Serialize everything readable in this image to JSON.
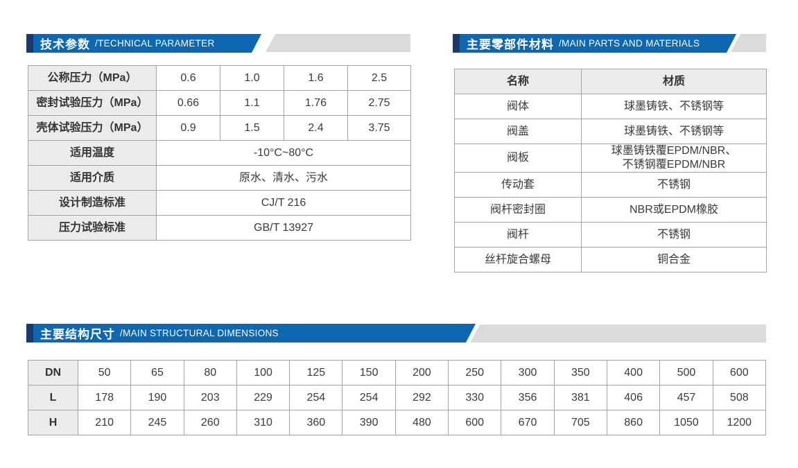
{
  "colors": {
    "banner_blue": "#0d68b1",
    "banner_dark_accent": "#1a3a6b",
    "banner_gray": "#dbdbdb",
    "table_border": "#a3a3a3",
    "label_cell_bg": "#ebebeb",
    "text": "#3a3a3a"
  },
  "sections": {
    "technical": {
      "title_zh": "技术参数",
      "title_en": "/TECHNICAL PARAMETER",
      "rows": [
        {
          "label": "公称压力（MPa）",
          "values": [
            "0.6",
            "1.0",
            "1.6",
            "2.5"
          ]
        },
        {
          "label": "密封试验压力（MPa）",
          "values": [
            "0.66",
            "1.1",
            "1.76",
            "2.75"
          ]
        },
        {
          "label": "壳体试验压力（MPa）",
          "values": [
            "0.9",
            "1.5",
            "2.4",
            "3.75"
          ]
        },
        {
          "label": "适用温度",
          "value": "-10°C~80°C"
        },
        {
          "label": "适用介质",
          "value": "原水、清水、污水"
        },
        {
          "label": "设计制造标准",
          "value": "CJ/T 216"
        },
        {
          "label": "压力试验标准",
          "value": "GB/T 13927"
        }
      ]
    },
    "materials": {
      "title_zh": "主要零部件材料",
      "title_en": "/MAIN PARTS AND MATERIALS",
      "headers": [
        "名称",
        "材质"
      ],
      "rows": [
        {
          "name": "阀体",
          "material": "球墨铸铁、不锈钢等"
        },
        {
          "name": "阀盖",
          "material": "球墨铸铁、不锈钢等"
        },
        {
          "name": "阀板",
          "material": [
            "球墨铸铁覆EPDM/NBR、",
            "不锈钢覆EPDM/NBR"
          ]
        },
        {
          "name": "传动套",
          "material": "不锈钢"
        },
        {
          "name": "阀杆密封圈",
          "material": "NBR或EPDM橡胶"
        },
        {
          "name": "阀杆",
          "material": "不锈钢"
        },
        {
          "name": "丝杆旋合螺母",
          "material": "铜合金"
        }
      ]
    },
    "dimensions": {
      "title_zh": "主要结构尺寸",
      "title_en": "/MAIN STRUCTURAL DIMENSIONS",
      "rows": [
        {
          "label": "DN",
          "values": [
            "50",
            "65",
            "80",
            "100",
            "125",
            "150",
            "200",
            "250",
            "300",
            "350",
            "400",
            "500",
            "600"
          ]
        },
        {
          "label": "L",
          "values": [
            "178",
            "190",
            "203",
            "229",
            "254",
            "254",
            "292",
            "330",
            "356",
            "381",
            "406",
            "457",
            "508"
          ]
        },
        {
          "label": "H",
          "values": [
            "210",
            "245",
            "260",
            "310",
            "360",
            "390",
            "480",
            "600",
            "670",
            "705",
            "860",
            "1050",
            "1200"
          ]
        }
      ]
    }
  }
}
